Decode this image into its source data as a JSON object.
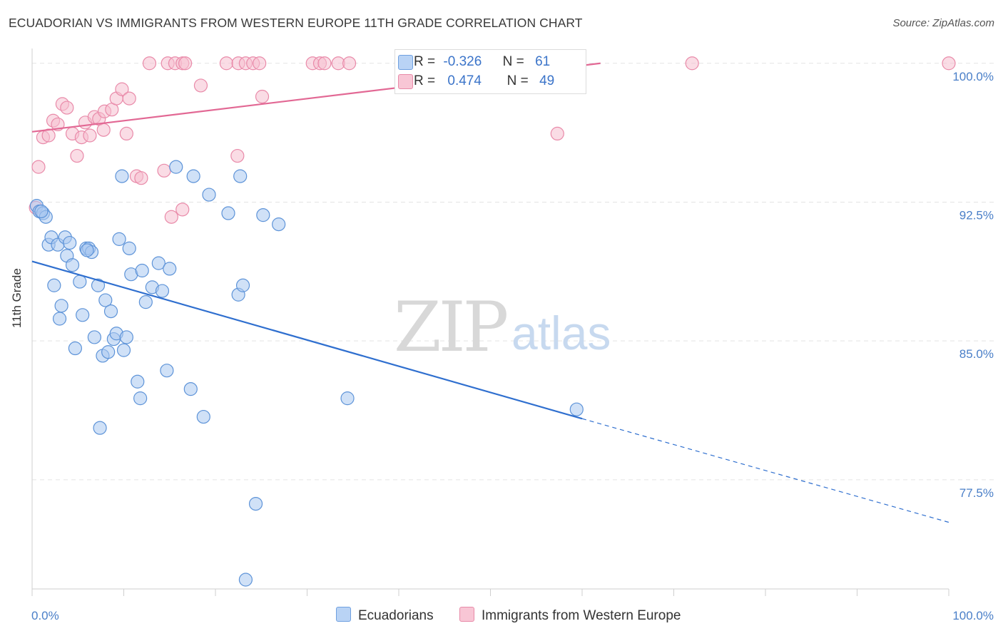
{
  "title": "ECUADORIAN VS IMMIGRANTS FROM WESTERN EUROPE 11TH GRADE CORRELATION CHART",
  "source": "Source: ZipAtlas.com",
  "watermark": {
    "zip": "ZIP",
    "atlas": "atlas"
  },
  "legend": {
    "r_label": "R =",
    "n_label": "N =",
    "rows": [
      {
        "r": "-0.326",
        "n": "61",
        "fill": "#b9d3f5",
        "stroke": "#6fa0e0"
      },
      {
        "r": "0.474",
        "n": "49",
        "fill": "#f8c6d5",
        "stroke": "#e88aa8"
      }
    ]
  },
  "colors": {
    "blue_fill": "#a9c8f0",
    "blue_stroke": "#5d93d8",
    "blue_line": "#2f6fcf",
    "pink_fill": "#f6bfd0",
    "pink_stroke": "#e98aa9",
    "pink_line": "#e26894",
    "grid": "#e3e3e3",
    "axis_text": "#4a7fc8"
  },
  "chart_data": {
    "type": "scatter",
    "xlabel": "",
    "ylabel": "11th Grade",
    "xlim": [
      0,
      100
    ],
    "ylim": [
      71.6,
      100.8
    ],
    "x_tick_labels": [
      {
        "value": 0,
        "label": "0.0%"
      },
      {
        "value": 100,
        "label": "100.0%"
      }
    ],
    "y_tick_labels": [
      {
        "value": 100.0,
        "label": "100.0%"
      },
      {
        "value": 92.5,
        "label": "92.5%"
      },
      {
        "value": 85.0,
        "label": "85.0%"
      },
      {
        "value": 77.5,
        "label": "77.5%"
      }
    ],
    "grid": true,
    "legend_position": "top-center",
    "series": [
      {
        "name": "Ecuadorians",
        "r": -0.326,
        "n": 61,
        "trend": {
          "x0": 0.0,
          "y0": 89.3,
          "x1": 60.0,
          "y1": 80.8,
          "dashed_to_x": 100.0,
          "dashed_to_y": 75.2
        },
        "points": [
          [
            0.5,
            92.3
          ],
          [
            0.8,
            92.0
          ],
          [
            1.2,
            91.9
          ],
          [
            1.5,
            91.7
          ],
          [
            1.8,
            90.2
          ],
          [
            2.1,
            90.6
          ],
          [
            2.4,
            88.0
          ],
          [
            2.8,
            90.2
          ],
          [
            3.0,
            86.2
          ],
          [
            3.2,
            86.9
          ],
          [
            3.6,
            90.6
          ],
          [
            3.8,
            89.6
          ],
          [
            4.1,
            90.3
          ],
          [
            4.4,
            89.1
          ],
          [
            4.7,
            84.6
          ],
          [
            5.2,
            88.2
          ],
          [
            5.5,
            86.4
          ],
          [
            5.9,
            90.0
          ],
          [
            6.2,
            90.0
          ],
          [
            6.5,
            89.8
          ],
          [
            6.8,
            85.2
          ],
          [
            7.2,
            88.0
          ],
          [
            7.4,
            80.3
          ],
          [
            7.7,
            84.2
          ],
          [
            8.0,
            87.2
          ],
          [
            8.3,
            84.4
          ],
          [
            8.6,
            86.6
          ],
          [
            8.9,
            85.1
          ],
          [
            9.2,
            85.4
          ],
          [
            9.5,
            90.5
          ],
          [
            9.8,
            93.9
          ],
          [
            10.0,
            84.5
          ],
          [
            10.3,
            85.2
          ],
          [
            10.6,
            90.0
          ],
          [
            10.8,
            88.6
          ],
          [
            11.5,
            82.8
          ],
          [
            11.8,
            81.9
          ],
          [
            12.0,
            88.8
          ],
          [
            12.4,
            87.1
          ],
          [
            13.1,
            87.9
          ],
          [
            13.8,
            89.2
          ],
          [
            14.2,
            87.7
          ],
          [
            14.7,
            83.4
          ],
          [
            15.0,
            88.9
          ],
          [
            15.7,
            94.4
          ],
          [
            17.3,
            82.4
          ],
          [
            17.6,
            93.9
          ],
          [
            18.7,
            80.9
          ],
          [
            19.3,
            92.9
          ],
          [
            21.4,
            91.9
          ],
          [
            22.5,
            87.5
          ],
          [
            22.7,
            93.9
          ],
          [
            23.0,
            88.0
          ],
          [
            23.3,
            72.1
          ],
          [
            24.4,
            76.2
          ],
          [
            25.2,
            91.8
          ],
          [
            26.9,
            91.3
          ],
          [
            34.4,
            81.9
          ],
          [
            59.4,
            81.3
          ],
          [
            1.0,
            92.0
          ],
          [
            6.0,
            89.9
          ]
        ]
      },
      {
        "name": "Immigrants from Western Europe",
        "r": 0.474,
        "n": 49,
        "trend": {
          "x0": 0.0,
          "y0": 96.3,
          "x1": 62.0,
          "y1": 100.0
        },
        "points": [
          [
            0.4,
            92.2
          ],
          [
            0.7,
            94.4
          ],
          [
            1.2,
            96.0
          ],
          [
            1.8,
            96.1
          ],
          [
            2.3,
            96.9
          ],
          [
            2.8,
            96.7
          ],
          [
            3.3,
            97.8
          ],
          [
            3.8,
            97.6
          ],
          [
            4.4,
            96.2
          ],
          [
            4.9,
            95.0
          ],
          [
            5.4,
            96.0
          ],
          [
            5.8,
            96.8
          ],
          [
            6.3,
            96.1
          ],
          [
            6.8,
            97.1
          ],
          [
            7.3,
            97.0
          ],
          [
            7.9,
            97.4
          ],
          [
            7.8,
            96.4
          ],
          [
            8.7,
            97.5
          ],
          [
            9.2,
            98.1
          ],
          [
            9.8,
            98.6
          ],
          [
            10.3,
            96.2
          ],
          [
            10.6,
            98.1
          ],
          [
            11.4,
            93.9
          ],
          [
            11.9,
            93.8
          ],
          [
            12.8,
            100.0
          ],
          [
            14.4,
            94.2
          ],
          [
            14.8,
            100.0
          ],
          [
            15.2,
            91.7
          ],
          [
            15.6,
            100.0
          ],
          [
            16.4,
            100.0
          ],
          [
            16.4,
            92.1
          ],
          [
            16.7,
            100.0
          ],
          [
            18.4,
            98.8
          ],
          [
            21.2,
            100.0
          ],
          [
            22.4,
            95.0
          ],
          [
            22.5,
            100.0
          ],
          [
            23.3,
            100.0
          ],
          [
            24.1,
            100.0
          ],
          [
            24.8,
            100.0
          ],
          [
            25.1,
            98.2
          ],
          [
            30.6,
            100.0
          ],
          [
            31.4,
            100.0
          ],
          [
            31.9,
            100.0
          ],
          [
            33.4,
            100.0
          ],
          [
            34.6,
            100.0
          ],
          [
            50.3,
            100.0
          ],
          [
            57.3,
            96.2
          ],
          [
            72.0,
            100.0
          ],
          [
            100.0,
            100.0
          ]
        ]
      }
    ]
  }
}
